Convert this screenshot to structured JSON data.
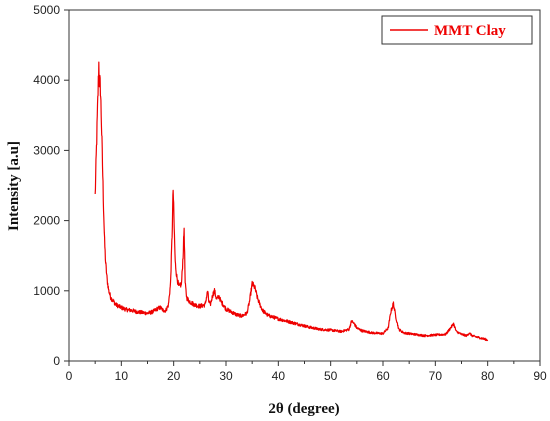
{
  "chart_data": {
    "type": "line",
    "title": "",
    "xlabel": "2θ (degree)",
    "ylabel": "Intensity [a.u]",
    "xlim": [
      0,
      90
    ],
    "ylim": [
      0,
      5000
    ],
    "x_ticks": [
      0,
      10,
      20,
      30,
      40,
      50,
      60,
      70,
      80,
      90
    ],
    "y_ticks": [
      0,
      1000,
      2000,
      3000,
      4000,
      5000
    ],
    "grid": false,
    "legend_position": "top-right",
    "series": [
      {
        "name": "MMT Clay",
        "color": "#ee0000",
        "x": [
          5.0,
          5.2,
          5.5,
          5.7,
          5.8,
          6.0,
          6.2,
          6.4,
          6.6,
          6.8,
          7.0,
          7.3,
          7.6,
          8.0,
          8.5,
          9.0,
          10.0,
          11.0,
          12.0,
          13.0,
          14.0,
          15.0,
          16.0,
          17.0,
          17.5,
          18.0,
          18.5,
          19.0,
          19.4,
          19.7,
          19.9,
          20.1,
          20.3,
          20.6,
          21.0,
          21.5,
          21.8,
          22.0,
          22.2,
          22.5,
          23.0,
          24.0,
          25.0,
          26.0,
          26.5,
          26.7,
          27.0,
          27.5,
          27.8,
          28.2,
          28.7,
          29.0,
          29.5,
          30.0,
          31.0,
          32.0,
          33.0,
          34.0,
          34.5,
          35.0,
          35.5,
          36.0,
          36.5,
          37.0,
          38.0,
          40.0,
          42.0,
          44.0,
          46.0,
          48.0,
          50.0,
          52.0,
          53.5,
          54.0,
          54.5,
          55.0,
          56.0,
          58.0,
          60.0,
          61.0,
          61.5,
          62.0,
          62.4,
          63.0,
          64.0,
          66.0,
          68.0,
          70.0,
          72.0,
          73.0,
          73.5,
          74.0,
          75.0,
          76.0,
          76.5,
          77.0,
          78.0,
          79.0,
          80.0
        ],
        "y": [
          2350,
          2900,
          3700,
          4230,
          4000,
          3900,
          3400,
          2800,
          2200,
          1700,
          1400,
          1150,
          1000,
          900,
          850,
          800,
          760,
          730,
          720,
          700,
          690,
          680,
          700,
          750,
          760,
          720,
          720,
          800,
          1100,
          1800,
          2450,
          1900,
          1400,
          1200,
          1050,
          1100,
          1500,
          1900,
          1100,
          900,
          850,
          800,
          780,
          800,
          1000,
          850,
          800,
          950,
          1000,
          880,
          920,
          850,
          800,
          740,
          700,
          660,
          640,
          680,
          850,
          1100,
          1050,
          900,
          800,
          720,
          650,
          600,
          560,
          520,
          480,
          450,
          440,
          420,
          450,
          570,
          530,
          470,
          430,
          400,
          390,
          470,
          700,
          820,
          650,
          450,
          400,
          380,
          360,
          370,
          380,
          480,
          530,
          420,
          380,
          360,
          400,
          360,
          340,
          320,
          300
        ]
      }
    ]
  }
}
